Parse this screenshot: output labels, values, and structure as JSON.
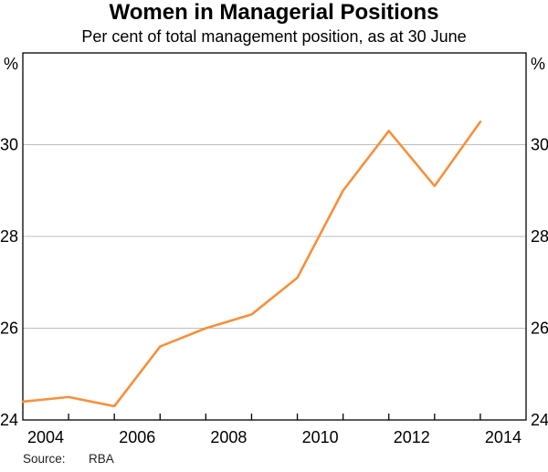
{
  "page": {
    "source_label": "Source:",
    "source_value": "RBA"
  },
  "chart_data": {
    "type": "line",
    "title": "Women in Managerial Positions",
    "subtitle": "Per cent of total management position, as at 30 June",
    "unit_label": "%",
    "series": [
      {
        "name": "Women in managerial positions",
        "x": [
          2003,
          2004,
          2005,
          2006,
          2007,
          2008,
          2009,
          2010,
          2011,
          2012,
          2013
        ],
        "values": [
          24.4,
          24.5,
          24.3,
          25.6,
          26.0,
          26.3,
          27.1,
          29.0,
          30.3,
          29.1,
          30.5
        ]
      }
    ],
    "xlim": [
      2003,
      2014
    ],
    "ylim": [
      24,
      32
    ],
    "y_tick_values": [
      24,
      26,
      28,
      30
    ],
    "y_tick_labels": [
      "24",
      "26",
      "28",
      "30"
    ],
    "y_gridlines": [
      26,
      28,
      30
    ],
    "x_tick_years": [
      2004,
      2005,
      2006,
      2007,
      2008,
      2009,
      2010,
      2011,
      2012,
      2013
    ],
    "x_label_years": [
      2004,
      2006,
      2008,
      2010,
      2012,
      2014
    ],
    "grid": "horizontal",
    "legend_position": "none",
    "line_color": "#f6903d",
    "grid_color": "#bdbdbd",
    "axis_color": "#000000"
  }
}
